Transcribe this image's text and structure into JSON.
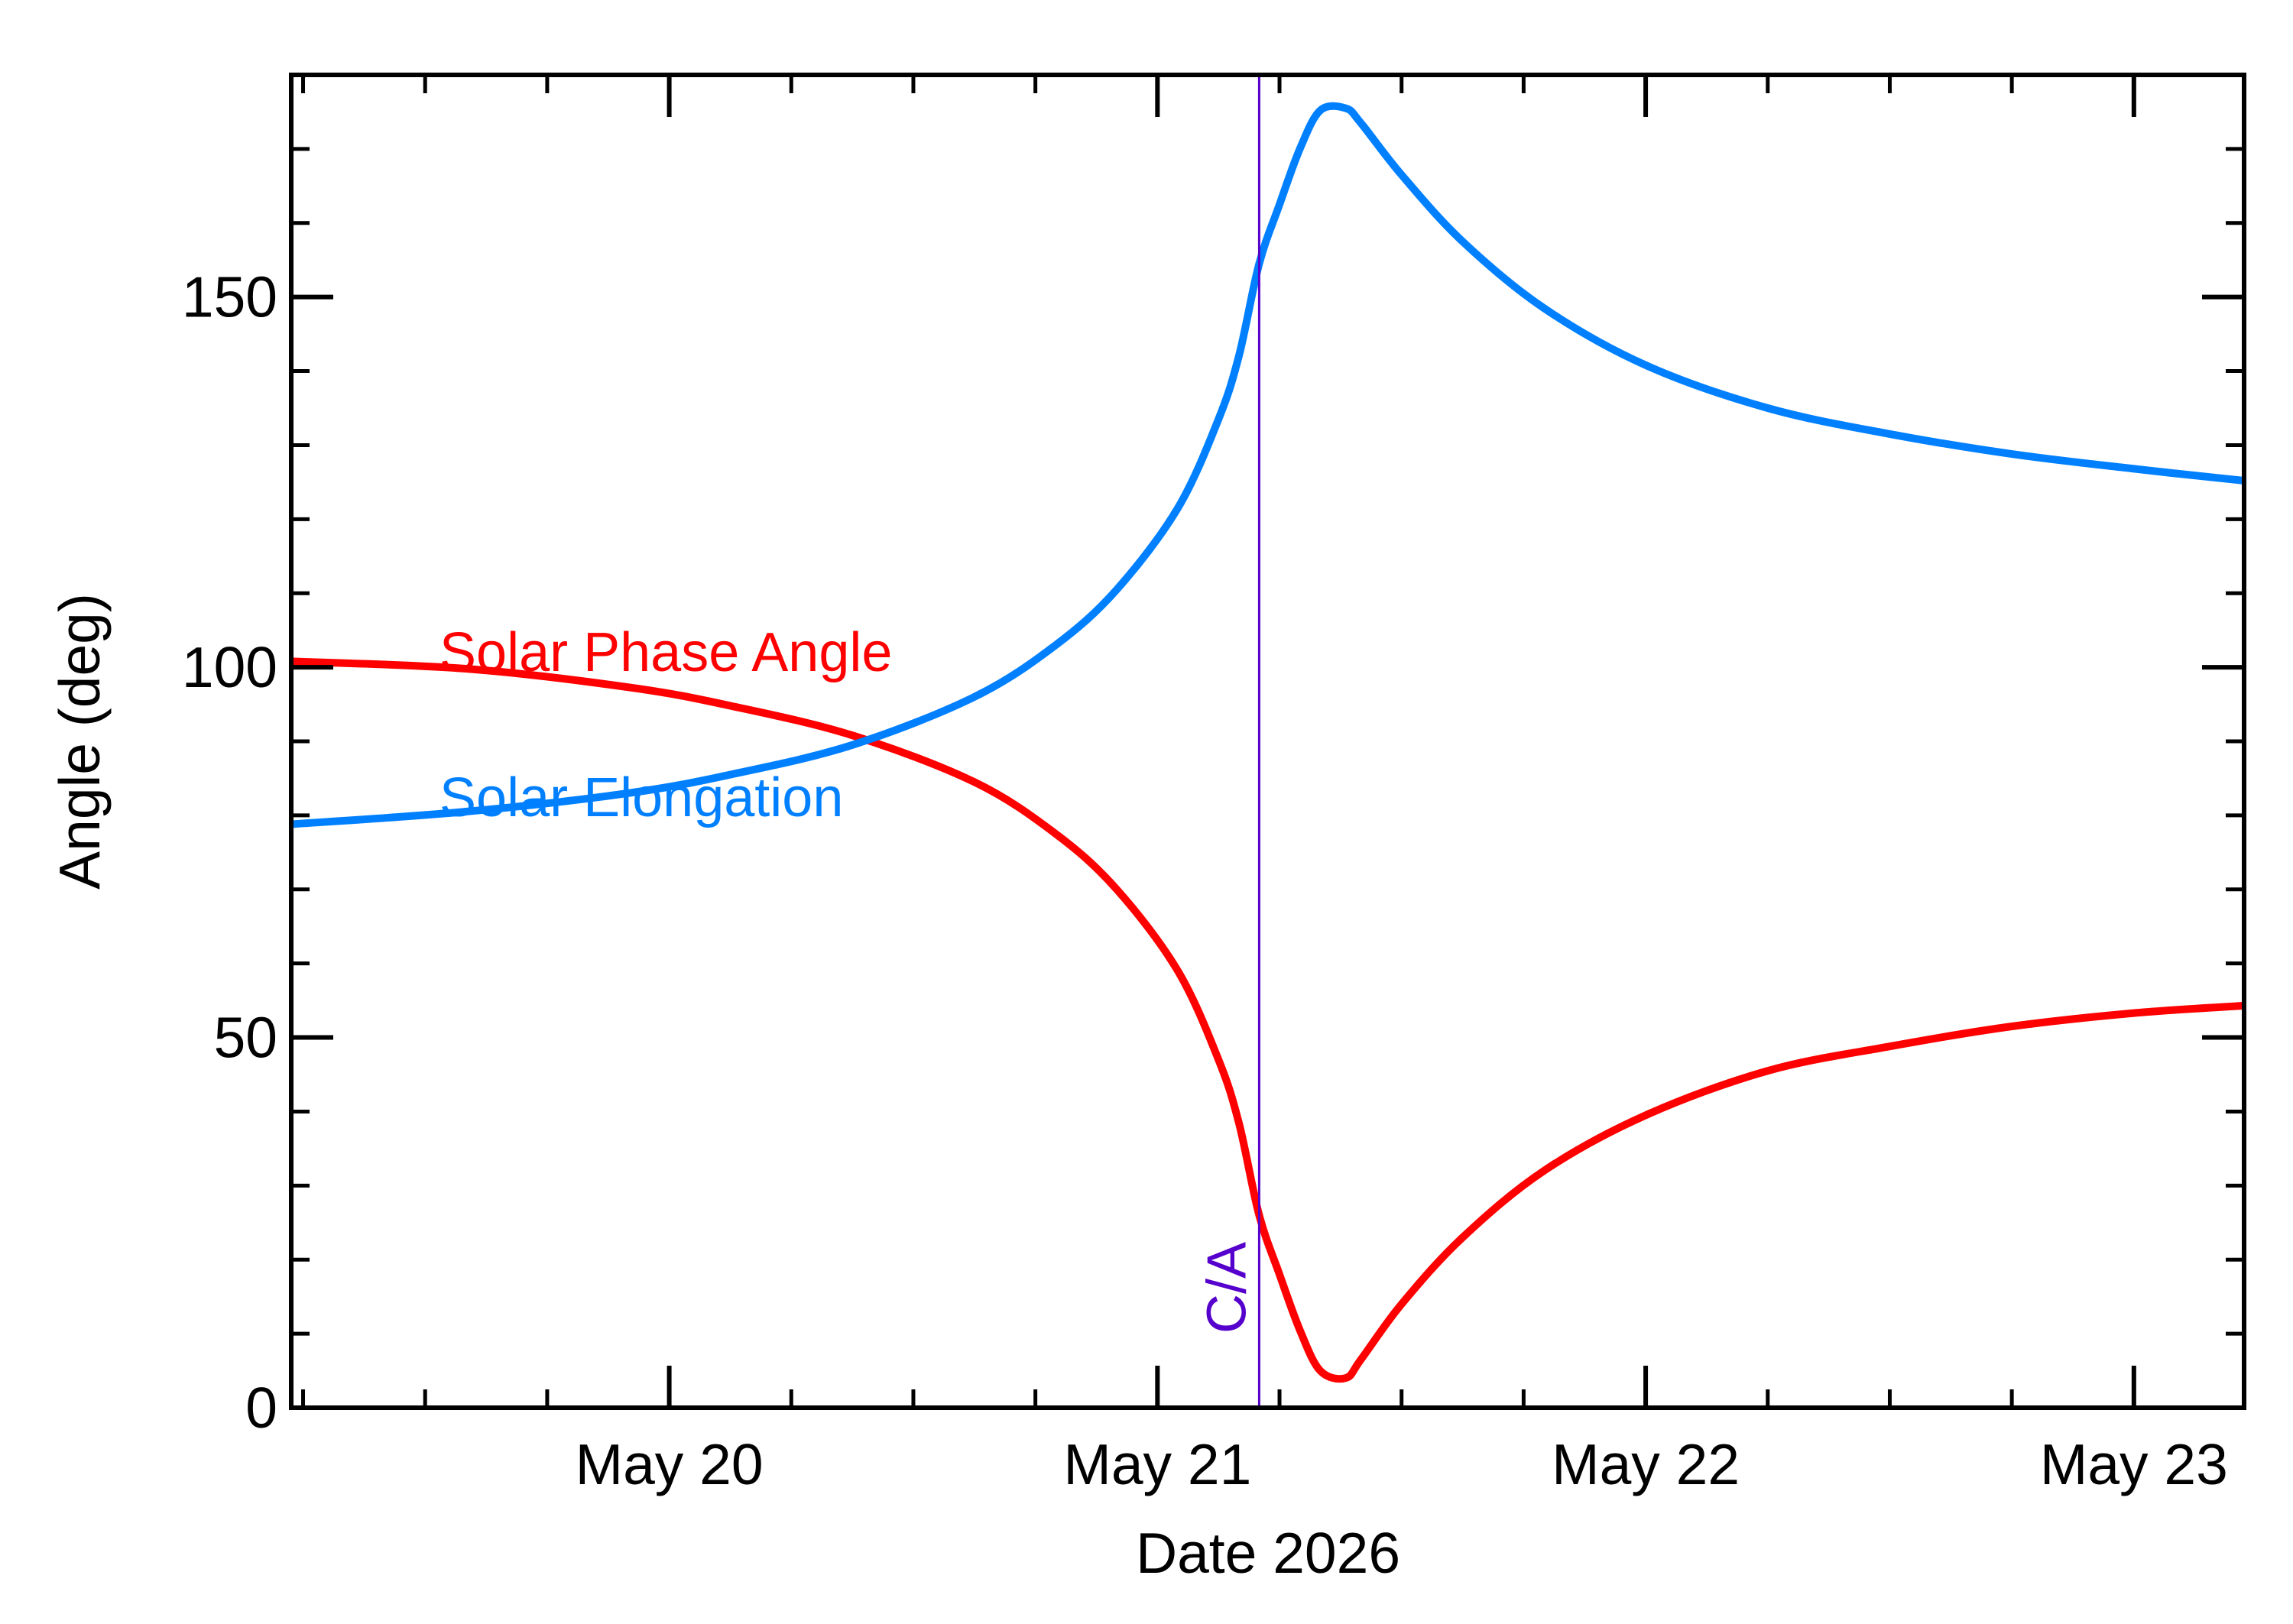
{
  "chart_data": {
    "type": "line",
    "title": "",
    "xlabel": "Date 2026",
    "ylabel": "Angle (deg)",
    "x_unit": "date",
    "xlim": [
      "2026-05-19 05:25",
      "2026-05-23 05:25"
    ],
    "ylim": [
      0,
      180
    ],
    "x_ticks": [
      {
        "label": "May 20",
        "date": "2026-05-20 00:00"
      },
      {
        "label": "May 21",
        "date": "2026-05-21 00:00"
      },
      {
        "label": "May 22",
        "date": "2026-05-22 00:00"
      },
      {
        "label": "May 23",
        "date": "2026-05-23 00:00"
      }
    ],
    "y_ticks": [
      0,
      50,
      100,
      150
    ],
    "y_minor_step": 10,
    "x_minor_step_hours": 6,
    "grid": false,
    "legend": "inline",
    "close_approach": {
      "label": "C/A",
      "date": "2026-05-21 05:00",
      "color": "#5500cc"
    },
    "series": [
      {
        "name": "Solar Phase Angle",
        "color": "#ff0000",
        "points": [
          [
            "2026-05-19 05:25",
            100.8
          ],
          [
            "2026-05-19 14:00",
            99.8
          ],
          [
            "2026-05-19 22:00",
            97.3
          ],
          [
            "2026-05-20 03:00",
            94.8
          ],
          [
            "2026-05-20 09:00",
            90.8
          ],
          [
            "2026-05-20 15:00",
            84.5
          ],
          [
            "2026-05-20 19:00",
            77.5
          ],
          [
            "2026-05-20 22:00",
            70.0
          ],
          [
            "2026-05-21 01:00",
            59.0
          ],
          [
            "2026-05-21 03:00",
            47.0
          ],
          [
            "2026-05-21 04:00",
            38.5
          ],
          [
            "2026-05-21 05:00",
            26.0
          ],
          [
            "2026-05-21 06:00",
            18.0
          ],
          [
            "2026-05-21 07:00",
            10.5
          ],
          [
            "2026-05-21 08:00",
            5.0
          ],
          [
            "2026-05-21 09:15",
            4.0
          ],
          [
            "2026-05-21 10:00",
            6.5
          ],
          [
            "2026-05-21 12:00",
            14.0
          ],
          [
            "2026-05-21 15:00",
            23.0
          ],
          [
            "2026-05-21 19:00",
            32.0
          ],
          [
            "2026-05-22 00:00",
            39.5
          ],
          [
            "2026-05-22 06:00",
            45.5
          ],
          [
            "2026-05-22 12:00",
            48.8
          ],
          [
            "2026-05-22 18:00",
            51.5
          ],
          [
            "2026-05-23 00:00",
            53.3
          ],
          [
            "2026-05-23 05:25",
            54.3
          ]
        ]
      },
      {
        "name": "Solar Elongation",
        "color": "#0080ff",
        "points": [
          [
            "2026-05-19 05:25",
            78.8
          ],
          [
            "2026-05-19 14:00",
            80.5
          ],
          [
            "2026-05-19 22:00",
            83.0
          ],
          [
            "2026-05-20 03:00",
            85.5
          ],
          [
            "2026-05-20 09:00",
            89.5
          ],
          [
            "2026-05-20 15:00",
            96.0
          ],
          [
            "2026-05-20 19:00",
            103.0
          ],
          [
            "2026-05-20 22:00",
            110.5
          ],
          [
            "2026-05-21 01:00",
            121.5
          ],
          [
            "2026-05-21 03:00",
            133.5
          ],
          [
            "2026-05-21 04:00",
            142.0
          ],
          [
            "2026-05-21 05:00",
            154.5
          ],
          [
            "2026-05-21 06:00",
            162.5
          ],
          [
            "2026-05-21 07:00",
            170.0
          ],
          [
            "2026-05-21 08:00",
            175.2
          ],
          [
            "2026-05-21 09:15",
            175.5
          ],
          [
            "2026-05-21 10:00",
            173.5
          ],
          [
            "2026-05-21 12:00",
            166.5
          ],
          [
            "2026-05-21 15:00",
            157.5
          ],
          [
            "2026-05-21 19:00",
            148.5
          ],
          [
            "2026-05-22 00:00",
            140.8
          ],
          [
            "2026-05-22 06:00",
            135.0
          ],
          [
            "2026-05-22 12:00",
            131.5
          ],
          [
            "2026-05-22 18:00",
            128.8
          ],
          [
            "2026-05-23 00:00",
            126.8
          ],
          [
            "2026-05-23 05:25",
            125.2
          ]
        ]
      }
    ]
  }
}
